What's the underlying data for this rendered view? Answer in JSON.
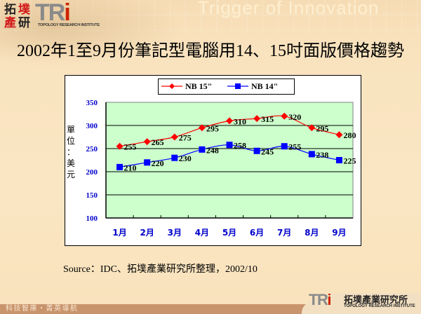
{
  "header": {
    "logo_cn_chars": [
      "拓",
      "墣",
      "產",
      "研"
    ],
    "logo_tri": "TR",
    "logo_tri_i": "i",
    "logo_subtitle": "TOPOLOGY RESEARCH INSTITUTE",
    "tagline": "Trigger of Innovation"
  },
  "slide": {
    "title": "2002年1至9月份筆記型電腦用14、15吋面版價格趨勢",
    "source": "Source：IDC、拓墣產業研究所整理，2002/10"
  },
  "footer": {
    "left_text": "科技智庫・菁英導航",
    "logo_tri": "TR",
    "logo_tri_i": "i",
    "logo_cn": "拓墣產業研究所",
    "logo_subtitle": "TOPOLOGY RESEARCH INSTITUTE"
  },
  "colors": {
    "series_15": "#ff0000",
    "series_14": "#0000ff",
    "plot_bg": "#ccffcc",
    "axis_label": "#0000cc"
  },
  "chart_data": {
    "type": "line",
    "title": "2002年1至9月份筆記型電腦用14、15吋面版價格趨勢",
    "xlabel": "",
    "ylabel": "單位：美元",
    "categories": [
      "1月",
      "2月",
      "3月",
      "4月",
      "5月",
      "6月",
      "7月",
      "8月",
      "9月"
    ],
    "series": [
      {
        "name": "NB 15\"",
        "marker": "diamond",
        "color": "#ff0000",
        "values": [
          255,
          265,
          275,
          295,
          310,
          315,
          320,
          295,
          280
        ]
      },
      {
        "name": "NB 14\"",
        "marker": "square",
        "color": "#0000ff",
        "values": [
          210,
          220,
          230,
          248,
          258,
          245,
          255,
          238,
          225
        ]
      }
    ],
    "ylim": [
      100,
      350
    ],
    "yticks": [
      100,
      150,
      200,
      250,
      300,
      350
    ],
    "grid": true,
    "legend_position": "top",
    "data_labels": true
  }
}
